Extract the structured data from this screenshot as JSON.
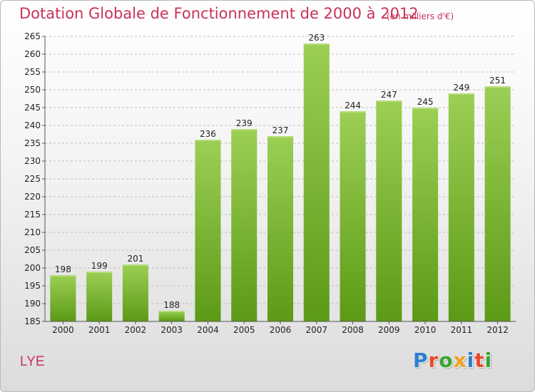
{
  "title": "Dotation Globale de Fonctionnement de 2000 à 2012",
  "subtitle": "(en milliers d'€)",
  "commune": "LYE",
  "logo": {
    "letters": [
      {
        "char": "P",
        "color": "#2b7fd0"
      },
      {
        "char": "r",
        "color": "#e84a2a"
      },
      {
        "char": "o",
        "color": "#3aa52f"
      },
      {
        "char": "x",
        "color": "#f0a020"
      },
      {
        "char": "i",
        "color": "#2b7fd0"
      },
      {
        "char": "t",
        "color": "#e84a2a"
      },
      {
        "char": "i",
        "color": "#3aa52f"
      }
    ]
  },
  "colors": {
    "title": "#c8325a",
    "bar_top": "#9ccf55",
    "bar_bottom": "#5c9a16",
    "grid": "#bdbdbd",
    "axis_text": "#222222"
  },
  "chart_data": {
    "type": "bar",
    "title": "Dotation Globale de Fonctionnement de 2000 à 2012",
    "subtitle": "(en milliers d'€)",
    "categories": [
      "2000",
      "2001",
      "2002",
      "2003",
      "2004",
      "2005",
      "2006",
      "2007",
      "2008",
      "2009",
      "2010",
      "2011",
      "2012"
    ],
    "values": [
      198,
      199,
      201,
      188,
      236,
      239,
      237,
      263,
      244,
      247,
      245,
      249,
      251
    ],
    "ylim": [
      185,
      265
    ],
    "yticks": [
      185,
      190,
      195,
      200,
      205,
      210,
      215,
      220,
      225,
      230,
      235,
      240,
      245,
      250,
      255,
      260,
      265
    ],
    "grid": "horizontal dashed",
    "legend": "none"
  }
}
